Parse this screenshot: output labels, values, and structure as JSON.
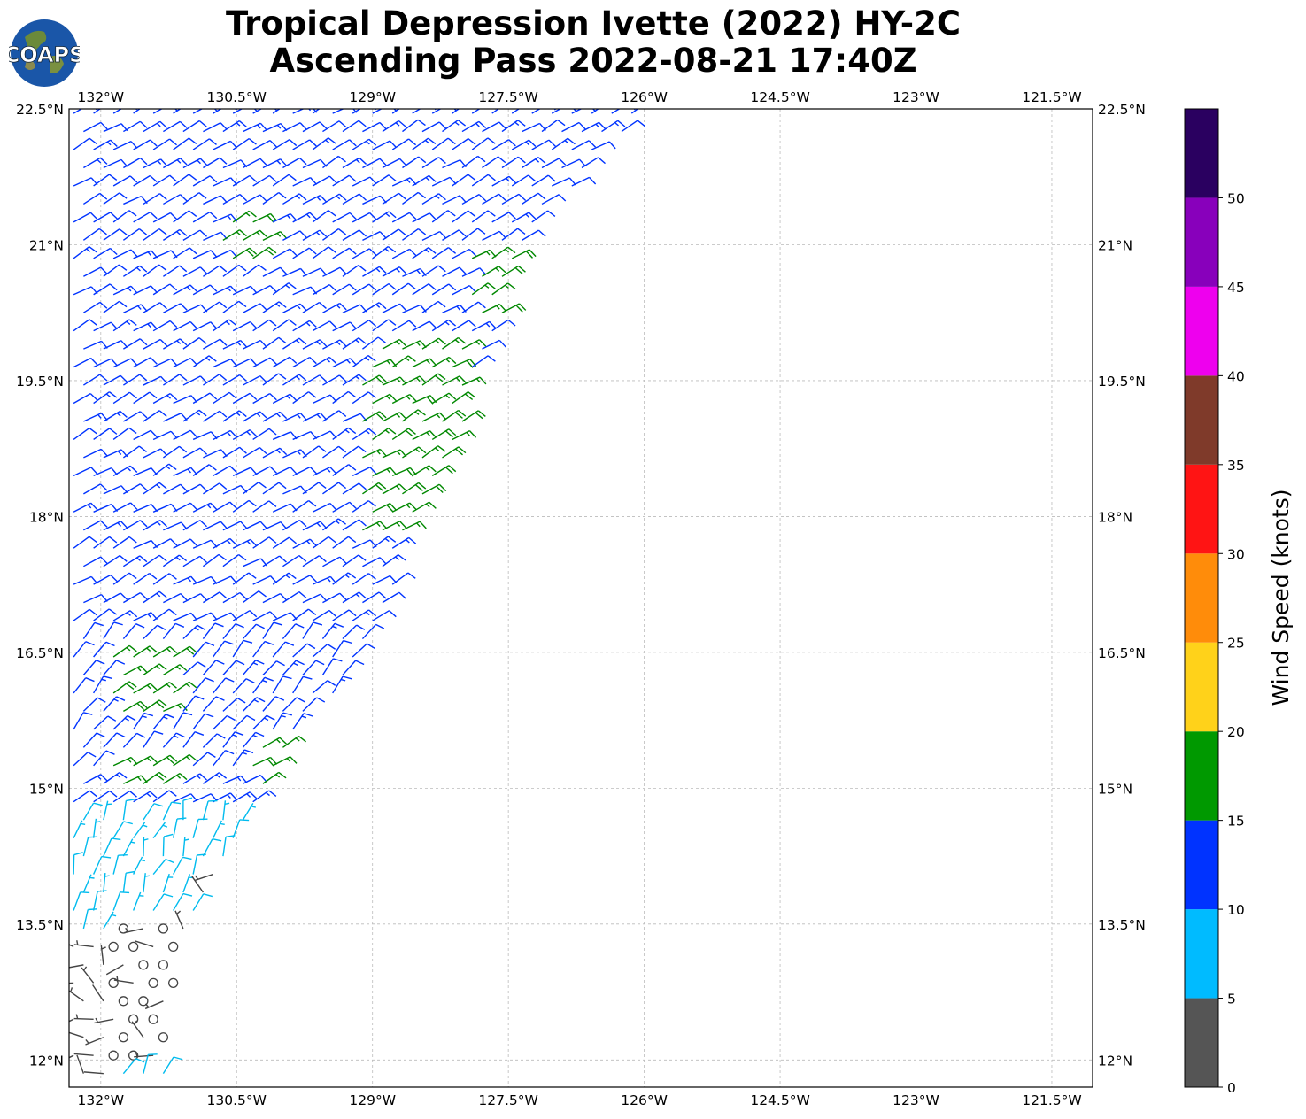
{
  "header": {
    "title_line1": "Tropical Depression Ivette (2022) HY-2C",
    "title_line2": "Ascending Pass 2022-08-21 17:40Z"
  },
  "logo": {
    "text": "COAPS",
    "icon": "globe-icon"
  },
  "map": {
    "lon_ticks": [
      "132°W",
      "130.5°W",
      "129°W",
      "127.5°W",
      "126°W",
      "124.5°W",
      "123°W",
      "121.5°W"
    ],
    "lon_values": [
      -132,
      -130.5,
      -129,
      -127.5,
      -126,
      -124.5,
      -123,
      -121.5
    ],
    "lat_ticks": [
      "22.5°N",
      "21°N",
      "19.5°N",
      "18°N",
      "16.5°N",
      "15°N",
      "13.5°N",
      "12°N"
    ],
    "lat_values": [
      22.5,
      21,
      19.5,
      18,
      16.5,
      15,
      13.5,
      12
    ],
    "lon_range": [
      -132.35,
      -121.05
    ],
    "lat_range": [
      11.7,
      22.5
    ],
    "grid": true,
    "swath": {
      "description_free": true,
      "east_edge": [
        [
          -125.95,
          22.5
        ],
        [
          -127.2,
          21.2
        ],
        [
          -127.8,
          19.6
        ],
        [
          -128.2,
          18.4
        ],
        [
          -128.8,
          17.2
        ],
        [
          -129.1,
          16.3
        ],
        [
          -129.8,
          15.6
        ],
        [
          -130.5,
          14.3
        ],
        [
          -130.9,
          13.5
        ],
        [
          -131.2,
          12.8
        ],
        [
          -131.3,
          11.7
        ]
      ],
      "west_lon": -132.35,
      "wind_regimes": [
        {
          "name": "blue",
          "color": "#0033ff",
          "knots": 12
        },
        {
          "name": "green",
          "color": "#008800",
          "knots": 17
        },
        {
          "name": "cyan",
          "color": "#00bbee",
          "knots": 8
        },
        {
          "name": "gray",
          "color": "#444444",
          "knots": 3
        },
        {
          "name": "calm",
          "color": "#444444",
          "knots": 0
        }
      ]
    }
  },
  "colorbar": {
    "label": "Wind Speed (knots)",
    "tick_labels": [
      "0",
      "5",
      "10",
      "15",
      "20",
      "25",
      "30",
      "35",
      "40",
      "45",
      "50"
    ],
    "bins": [
      {
        "from": 0,
        "to": 5,
        "color": "#555555"
      },
      {
        "from": 5,
        "to": 10,
        "color": "#00bbff"
      },
      {
        "from": 10,
        "to": 15,
        "color": "#0033ff"
      },
      {
        "from": 15,
        "to": 20,
        "color": "#009900"
      },
      {
        "from": 20,
        "to": 25,
        "color": "#ffd21a"
      },
      {
        "from": 25,
        "to": 30,
        "color": "#ff8c0a"
      },
      {
        "from": 30,
        "to": 35,
        "color": "#ff1414"
      },
      {
        "from": 35,
        "to": 40,
        "color": "#7f3a2a"
      },
      {
        "from": 40,
        "to": 45,
        "color": "#ee00ee"
      },
      {
        "from": 45,
        "to": 50,
        "color": "#8800bb"
      },
      {
        "from": 50,
        "to": 55,
        "color": "#2a0060"
      }
    ]
  }
}
